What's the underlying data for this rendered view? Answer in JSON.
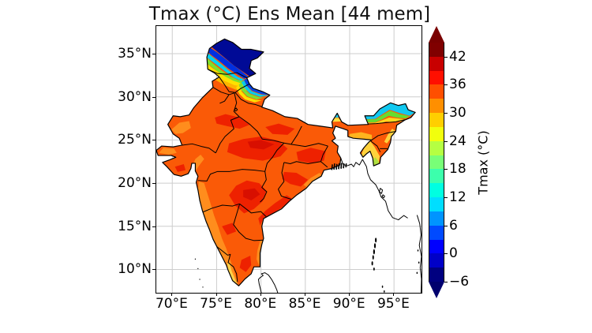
{
  "title": "Tmax (°C) Ens Mean [44 mem]",
  "axes": {
    "x_tick_labels": [
      "70°E",
      "75°E",
      "80°E",
      "85°E",
      "90°E",
      "95°E"
    ],
    "y_tick_labels": [
      "35°N",
      "30°N",
      "25°N",
      "20°N",
      "15°N",
      "10°N"
    ]
  },
  "colorbar": {
    "label": "Tmax (°C)",
    "tick_labels": [
      "42",
      "36",
      "30",
      "24",
      "18",
      "12",
      "6",
      "0",
      "−6"
    ],
    "segment_colors_top_to_bottom": [
      "#800000",
      "#c80000",
      "#ff0f00",
      "#ff4f00",
      "#ff8f00",
      "#ffcf00",
      "#f1ff0d",
      "#b5ff42",
      "#78ff77",
      "#3cffac",
      "#00ffe1",
      "#00deff",
      "#0094ff",
      "#004aff",
      "#0000ff",
      "#0000c8",
      "#000080"
    ],
    "extend_over_color": "#7a0000",
    "extend_under_color": "#00006e"
  },
  "chart_data": {
    "type": "heatmap",
    "title": "Tmax (°C) Ens Mean [44 mem]",
    "variable": "Maximum temperature ensemble mean",
    "units": "°C",
    "ensemble_members": 44,
    "map_region": "India",
    "lon_range_deg_e": [
      68.2,
      98.1
    ],
    "lat_range_deg_n": [
      7.3,
      38.2
    ],
    "x_ticks_deg_e": [
      70,
      75,
      80,
      85,
      90,
      95
    ],
    "y_ticks_deg_n": [
      35,
      30,
      25,
      20,
      15,
      10
    ],
    "grid": true,
    "colorbar": {
      "colormap": "jet",
      "min": -6,
      "max": 45,
      "level_step": 3,
      "ticks": [
        42,
        36,
        30,
        24,
        18,
        12,
        6,
        0,
        -6
      ],
      "extend": "both",
      "label": "Tmax (°C)"
    },
    "regions_approx_tmax_c": [
      {
        "region": "Karakoram / Ladakh high Himalaya (Jammu & Kashmir)",
        "tmax_c": -6
      },
      {
        "region": "Kashmir valley to Pir Panjal gradient band",
        "tmax_c": 9
      },
      {
        "region": "Himachal–Uttarakhand Himalayan rim",
        "tmax_c": 15
      },
      {
        "region": "Punjab–Haryana plains",
        "tmax_c": 39
      },
      {
        "region": "Rajasthan desert",
        "tmax_c": 40
      },
      {
        "region": "Indo-Gangetic plain (UP–Bihar)",
        "tmax_c": 40
      },
      {
        "region": "Central India (MP / Vidarbha)",
        "tmax_c": 43
      },
      {
        "region": "Jharkhand–West Bengal",
        "tmax_c": 42
      },
      {
        "region": "Coastal Andhra Pradesh",
        "tmax_c": 42
      },
      {
        "region": "Interior peninsula (Deccan)",
        "tmax_c": 40
      },
      {
        "region": "West coast strip (Konkan–Kerala)",
        "tmax_c": 33
      },
      {
        "region": "Kerala south tip",
        "tmax_c": 27
      },
      {
        "region": "Arunachal Himalaya",
        "tmax_c": 15
      },
      {
        "region": "Assam (Brahmaputra valley)",
        "tmax_c": 36
      },
      {
        "region": "Meghalaya / Mizoram / Tripura hills",
        "tmax_c": 27
      }
    ],
    "unfilled_outline_features": [
      "Bangladesh coast",
      "Myanmar coast",
      "Sri Lanka northern coast",
      "Andaman & Nicobar Islands",
      "Lakshadweep Islands",
      "Sundarbans delta (solid black)"
    ]
  }
}
